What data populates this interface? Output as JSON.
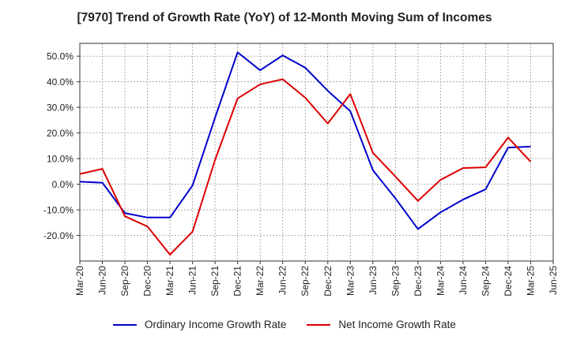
{
  "chart_data": {
    "type": "line",
    "title": "[7970]  Trend of Growth Rate (YoY) of 12-Month Moving Sum of Incomes",
    "xlabel": "",
    "ylabel": "",
    "x": [
      "Mar-20",
      "Jun-20",
      "Sep-20",
      "Dec-20",
      "Mar-21",
      "Jun-21",
      "Sep-21",
      "Dec-21",
      "Mar-22",
      "Jun-22",
      "Sep-22",
      "Dec-22",
      "Mar-23",
      "Jun-23",
      "Sep-23",
      "Dec-23",
      "Mar-24",
      "Jun-24",
      "Sep-24",
      "Dec-24",
      "Mar-25",
      "Jun-25"
    ],
    "ylim": [
      -30,
      55
    ],
    "yticks": [
      -20,
      -10,
      0,
      10,
      20,
      30,
      40,
      50
    ],
    "ytick_labels": [
      "-20.0%",
      "-10.0%",
      "0.0%",
      "10.0%",
      "20.0%",
      "30.0%",
      "40.0%",
      "50.0%"
    ],
    "grid": true,
    "legend_position": "bottom",
    "series": [
      {
        "name": "Ordinary Income Growth Rate",
        "color": "#0000cc",
        "values": [
          1.0,
          0.6,
          -11.3,
          -13.0,
          -13.0,
          -0.5,
          26.0,
          51.5,
          44.5,
          50.3,
          45.5,
          36.5,
          28.5,
          5.5,
          -5.5,
          -17.5,
          -11.0,
          -6.0,
          -2.0,
          14.3,
          14.7,
          null
        ]
      },
      {
        "name": "Net Income Growth Rate",
        "color": "#dd0000",
        "values": [
          4.0,
          6.0,
          -12.5,
          -16.5,
          -27.5,
          -18.5,
          9.5,
          33.5,
          39.0,
          41.0,
          33.8,
          23.7,
          35.2,
          12.3,
          3.0,
          -6.5,
          1.7,
          6.3,
          6.6,
          18.2,
          8.8,
          null
        ]
      }
    ]
  }
}
